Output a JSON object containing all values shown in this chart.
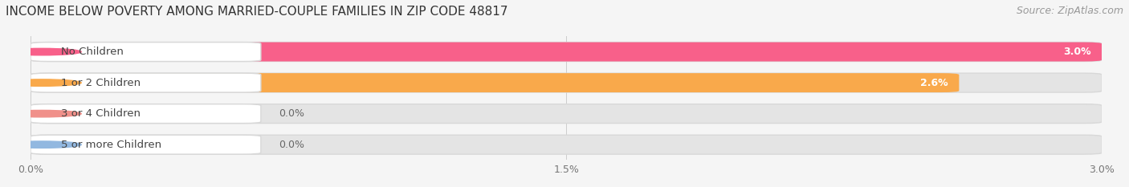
{
  "title": "INCOME BELOW POVERTY AMONG MARRIED-COUPLE FAMILIES IN ZIP CODE 48817",
  "source": "Source: ZipAtlas.com",
  "categories": [
    "No Children",
    "1 or 2 Children",
    "3 or 4 Children",
    "5 or more Children"
  ],
  "values": [
    3.0,
    2.6,
    0.0,
    0.0
  ],
  "bar_colors": [
    "#F8608A",
    "#F9A94B",
    "#F0908A",
    "#92B8E0"
  ],
  "xlim": [
    0.0,
    3.0
  ],
  "xticks": [
    0.0,
    1.5,
    3.0
  ],
  "xtick_labels": [
    "0.0%",
    "1.5%",
    "3.0%"
  ],
  "background_color": "#f5f5f5",
  "bar_bg_color": "#e4e4e4",
  "title_fontsize": 11,
  "source_fontsize": 9,
  "label_fontsize": 9.5,
  "value_fontsize": 9,
  "figsize": [
    14.06,
    2.33
  ],
  "dpi": 100
}
